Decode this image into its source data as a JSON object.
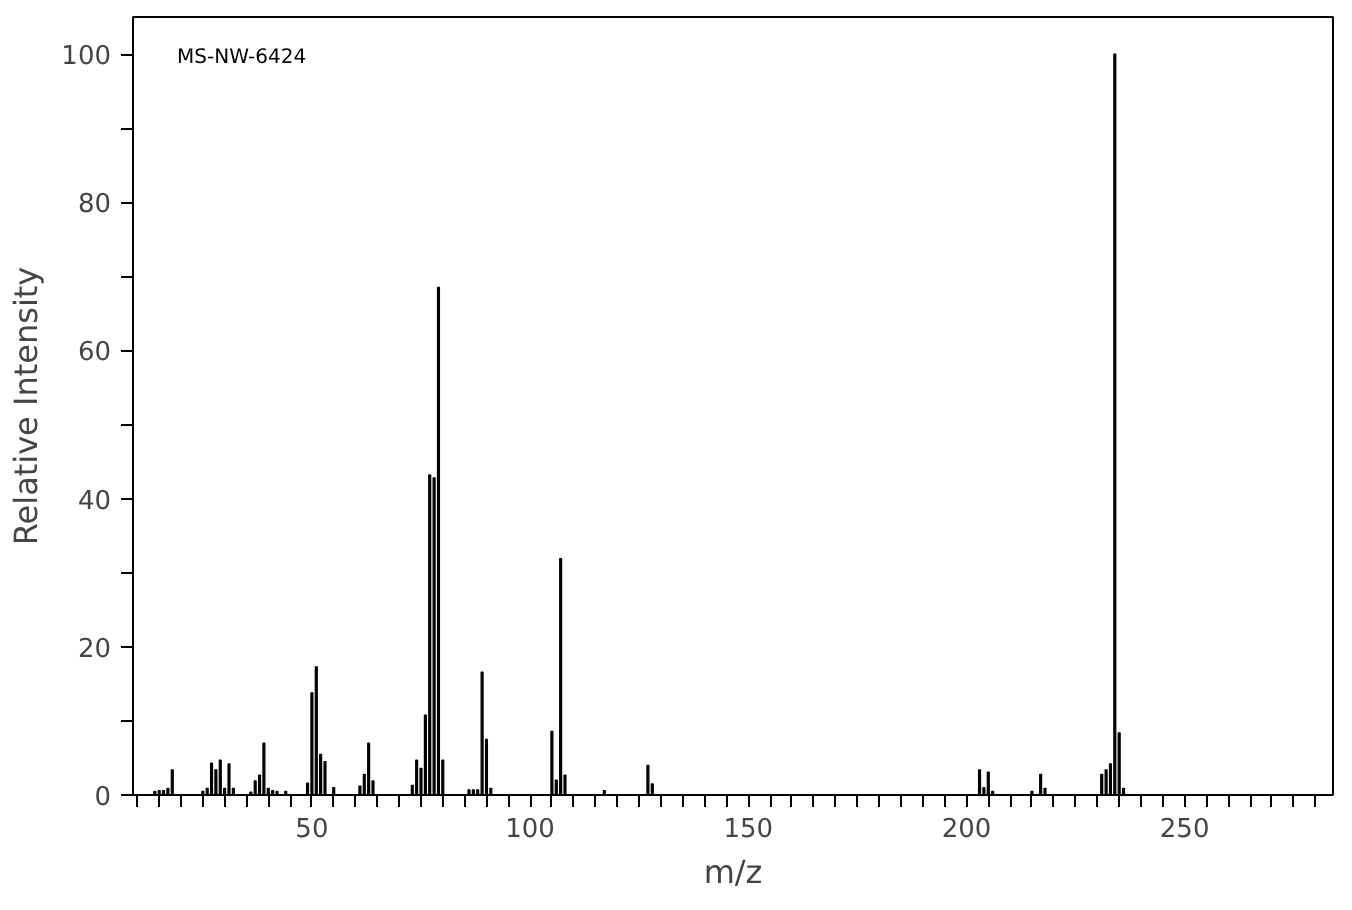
{
  "chart_data": {
    "type": "bar",
    "xlabel": "m/z",
    "ylabel": "Relative Intensity",
    "annotations": [
      "MS-NW-6424"
    ],
    "x": [
      14,
      15,
      16,
      17,
      18,
      25,
      26,
      27,
      28,
      29,
      30,
      31,
      32,
      36,
      37,
      38,
      39,
      40,
      41,
      42,
      44,
      49,
      50,
      51,
      52,
      53,
      55,
      61,
      62,
      63,
      64,
      73,
      74,
      75,
      76,
      77,
      78,
      79,
      80,
      86,
      87,
      88,
      89,
      90,
      91,
      105,
      106,
      107,
      108,
      117,
      127,
      128,
      203,
      204,
      205,
      206,
      215,
      217,
      218,
      231,
      232,
      233,
      234,
      235,
      236
    ],
    "values": [
      0.5,
      0.6,
      0.6,
      0.9,
      3.4,
      0.5,
      0.9,
      4.3,
      3.4,
      4.7,
      0.9,
      4.2,
      0.9,
      0.4,
      1.9,
      2.7,
      7.0,
      0.9,
      0.6,
      0.5,
      0.5,
      1.6,
      13.8,
      17.3,
      5.5,
      4.5,
      1.0,
      1.2,
      2.8,
      7.0,
      1.9,
      1.3,
      4.7,
      3.6,
      10.8,
      43.2,
      42.8,
      68.5,
      4.7,
      0.7,
      0.7,
      0.7,
      16.6,
      7.5,
      0.9,
      8.6,
      2.0,
      31.9,
      2.7,
      0.6,
      4.0,
      1.5,
      3.4,
      1.0,
      3.1,
      0.5,
      0.5,
      2.8,
      0.9,
      2.8,
      3.4,
      4.2,
      100,
      8.4,
      0.9
    ],
    "color": "#000000",
    "grid": false,
    "xlim": [
      9,
      284
    ],
    "ylim": [
      0,
      105
    ],
    "xticks": [
      {
        "value": 10,
        "label": null
      },
      {
        "value": 15,
        "label": null
      },
      {
        "value": 20,
        "label": null
      },
      {
        "value": 25,
        "label": null
      },
      {
        "value": 30,
        "label": null
      },
      {
        "value": 35,
        "label": null
      },
      {
        "value": 40,
        "label": null
      },
      {
        "value": 45,
        "label": null
      },
      50,
      {
        "value": 55,
        "label": null
      },
      {
        "value": 60,
        "label": null
      },
      {
        "value": 65,
        "label": null
      },
      {
        "value": 70,
        "label": null
      },
      {
        "value": 75,
        "label": null
      },
      {
        "value": 80,
        "label": null
      },
      {
        "value": 85,
        "label": null
      },
      {
        "value": 90,
        "label": null
      },
      {
        "value": 95,
        "label": null
      },
      100,
      {
        "value": 105,
        "label": null
      },
      {
        "value": 110,
        "label": null
      },
      {
        "value": 115,
        "label": null
      },
      {
        "value": 120,
        "label": null
      },
      {
        "value": 125,
        "label": null
      },
      {
        "value": 130,
        "label": null
      },
      {
        "value": 135,
        "label": null
      },
      {
        "value": 140,
        "label": null
      },
      {
        "value": 145,
        "label": null
      },
      150,
      {
        "value": 155,
        "label": null
      },
      {
        "value": 160,
        "label": null
      },
      {
        "value": 165,
        "label": null
      },
      {
        "value": 170,
        "label": null
      },
      {
        "value": 175,
        "label": null
      },
      {
        "value": 180,
        "label": null
      },
      {
        "value": 185,
        "label": null
      },
      {
        "value": 190,
        "label": null
      },
      {
        "value": 195,
        "label": null
      },
      200,
      {
        "value": 205,
        "label": null
      },
      {
        "value": 210,
        "label": null
      },
      {
        "value": 215,
        "label": null
      },
      {
        "value": 220,
        "label": null
      },
      {
        "value": 225,
        "label": null
      },
      {
        "value": 230,
        "label": null
      },
      {
        "value": 235,
        "label": null
      },
      {
        "value": 240,
        "label": null
      },
      {
        "value": 245,
        "label": null
      },
      250,
      {
        "value": 255,
        "label": null
      },
      {
        "value": 260,
        "label": null
      },
      {
        "value": 265,
        "label": null
      },
      {
        "value": 270,
        "label": null
      },
      {
        "value": 275,
        "label": null
      },
      {
        "value": 280,
        "label": null
      }
    ],
    "yticks": [
      0,
      {
        "value": 10,
        "label": null
      },
      20,
      {
        "value": 30,
        "label": null
      },
      40,
      {
        "value": 50,
        "label": null
      },
      60,
      {
        "value": 70,
        "label": null
      },
      80,
      {
        "value": 90,
        "label": null
      },
      100
    ]
  }
}
